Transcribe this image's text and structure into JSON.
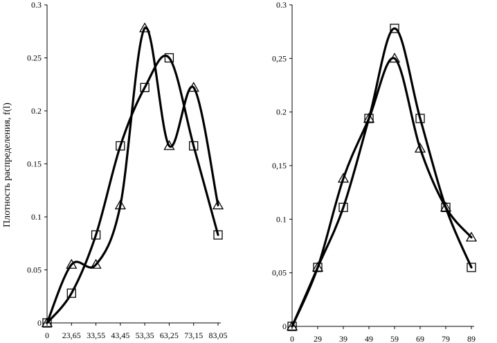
{
  "chart_data": [
    {
      "type": "line",
      "title": "",
      "ylabel": "Плотность распределения, f(l)",
      "xlabel": "",
      "ylim": [
        0,
        0.3
      ],
      "yticks": [
        "0",
        "0.05",
        "0.1",
        "0.15",
        "0.2",
        "0.25",
        "0.3"
      ],
      "categories": [
        "0",
        "23,65",
        "33,55",
        "43,45",
        "53,35",
        "63,25",
        "73,15",
        "83,05"
      ],
      "series": [
        {
          "marker": "triangle",
          "values": [
            0,
            0.055,
            0.055,
            0.111,
            0.278,
            0.167,
            0.222,
            0.111
          ]
        },
        {
          "marker": "square",
          "values": [
            0,
            0.028,
            0.083,
            0.167,
            0.222,
            0.25,
            0.167,
            0.083
          ]
        }
      ]
    },
    {
      "type": "line",
      "title": "",
      "ylabel": "",
      "xlabel": "",
      "ylim": [
        0,
        0.3
      ],
      "yticks": [
        "0",
        "0,05",
        "0.1",
        "0,15",
        "0.2",
        "0,25",
        "0.3"
      ],
      "categories": [
        "0",
        "29",
        "39",
        "49",
        "59",
        "69",
        "79",
        "89"
      ],
      "series": [
        {
          "marker": "triangle",
          "values": [
            0,
            0.055,
            0.138,
            0.194,
            0.25,
            0.166,
            0.111,
            0.083
          ]
        },
        {
          "marker": "square",
          "values": [
            0,
            0.055,
            0.111,
            0.194,
            0.278,
            0.194,
            0.111,
            0.055
          ]
        }
      ]
    }
  ]
}
